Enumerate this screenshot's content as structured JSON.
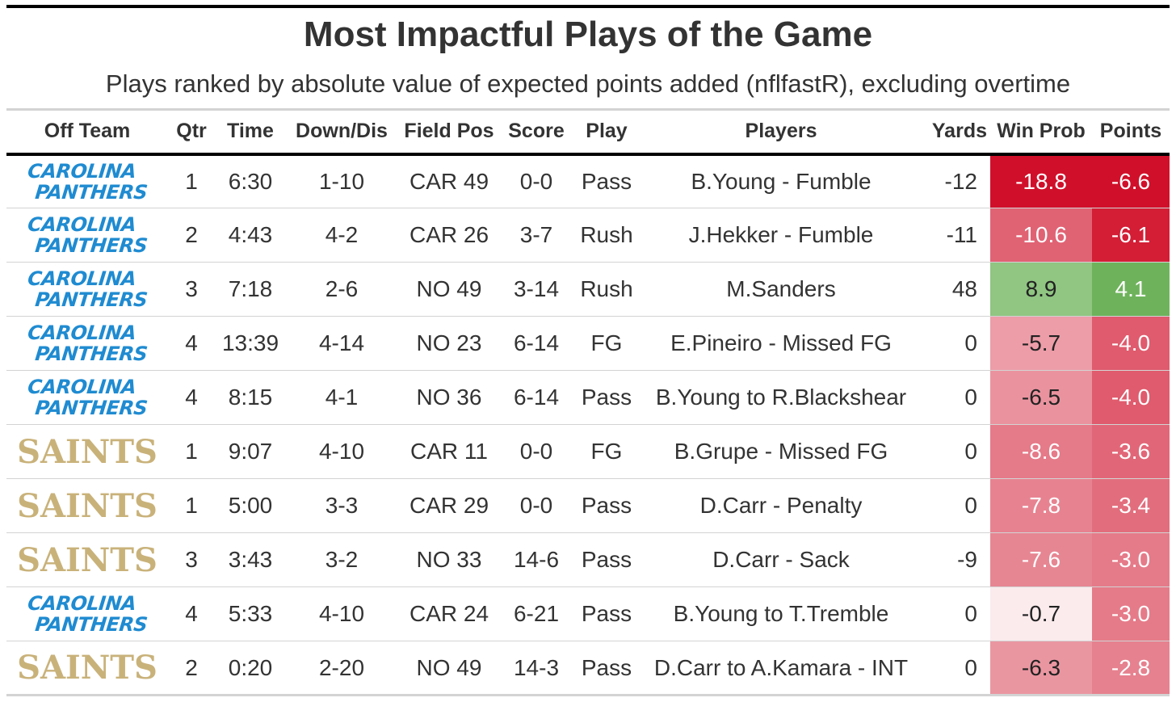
{
  "title": "Most Impactful Plays of the Game",
  "subtitle": "Plays ranked by absolute value of expected points added (nflfastR), excluding overtime",
  "columns": [
    "Off Team",
    "Qtr",
    "Time",
    "Down/Dis",
    "Field Pos",
    "Score",
    "Play",
    "Players",
    "Yards",
    "Win Prob",
    "Points"
  ],
  "logos": {
    "CAR": {
      "line1": "CAROLINA",
      "line2": "PANTHERS",
      "color": "#1f8bd1"
    },
    "NO": {
      "text": "SAINTS",
      "color": "#c9b27a"
    }
  },
  "colors": {
    "strong_negative": "#d0102a",
    "positive": "#6db35a",
    "neutral": "#ffffff"
  },
  "chart_data": {
    "type": "table",
    "rows": [
      {
        "team": "CAR",
        "qtr": "1",
        "time": "6:30",
        "down": "1-10",
        "fieldpos": "CAR 49",
        "score": "0-0",
        "play": "Pass",
        "players": "B.Young - Fumble",
        "yards": "-12",
        "winprob": "-18.8",
        "points": "-6.6"
      },
      {
        "team": "CAR",
        "qtr": "2",
        "time": "4:43",
        "down": "4-2",
        "fieldpos": "CAR 26",
        "score": "3-7",
        "play": "Rush",
        "players": "J.Hekker - Fumble",
        "yards": "-11",
        "winprob": "-10.6",
        "points": "-6.1"
      },
      {
        "team": "CAR",
        "qtr": "3",
        "time": "7:18",
        "down": "2-6",
        "fieldpos": "NO 49",
        "score": "3-14",
        "play": "Rush",
        "players": "M.Sanders",
        "yards": "48",
        "winprob": "8.9",
        "points": "4.1"
      },
      {
        "team": "CAR",
        "qtr": "4",
        "time": "13:39",
        "down": "4-14",
        "fieldpos": "NO 23",
        "score": "6-14",
        "play": "FG",
        "players": "E.Pineiro - Missed FG",
        "yards": "0",
        "winprob": "-5.7",
        "points": "-4.0"
      },
      {
        "team": "CAR",
        "qtr": "4",
        "time": "8:15",
        "down": "4-1",
        "fieldpos": "NO 36",
        "score": "6-14",
        "play": "Pass",
        "players": "B.Young to R.Blackshear",
        "yards": "0",
        "winprob": "-6.5",
        "points": "-4.0"
      },
      {
        "team": "NO",
        "qtr": "1",
        "time": "9:07",
        "down": "4-10",
        "fieldpos": "CAR 11",
        "score": "0-0",
        "play": "FG",
        "players": "B.Grupe - Missed FG",
        "yards": "0",
        "winprob": "-8.6",
        "points": "-3.6"
      },
      {
        "team": "NO",
        "qtr": "1",
        "time": "5:00",
        "down": "3-3",
        "fieldpos": "CAR 29",
        "score": "0-0",
        "play": "Pass",
        "players": "D.Carr - Penalty",
        "yards": "0",
        "winprob": "-7.8",
        "points": "-3.4"
      },
      {
        "team": "NO",
        "qtr": "3",
        "time": "3:43",
        "down": "3-2",
        "fieldpos": "NO 33",
        "score": "14-6",
        "play": "Pass",
        "players": "D.Carr - Sack",
        "yards": "-9",
        "winprob": "-7.6",
        "points": "-3.0"
      },
      {
        "team": "CAR",
        "qtr": "4",
        "time": "5:33",
        "down": "4-10",
        "fieldpos": "CAR 24",
        "score": "6-21",
        "play": "Pass",
        "players": "B.Young to T.Tremble",
        "yards": "0",
        "winprob": "-0.7",
        "points": "-3.0"
      },
      {
        "team": "NO",
        "qtr": "2",
        "time": "0:20",
        "down": "2-20",
        "fieldpos": "NO 49",
        "score": "14-3",
        "play": "Pass",
        "players": "D.Carr to A.Kamara - INT",
        "yards": "0",
        "winprob": "-6.3",
        "points": "-2.8"
      }
    ]
  }
}
